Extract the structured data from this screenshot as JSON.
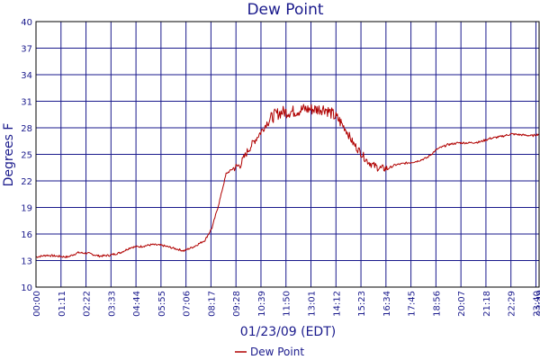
{
  "chart_data": {
    "type": "line",
    "title": "Dew Point",
    "xlabel": "01/23/09 (EDT)",
    "ylabel": "Degrees F",
    "ylim": [
      10,
      40
    ],
    "y_ticks": [
      10,
      13,
      16,
      19,
      22,
      25,
      28,
      31,
      34,
      37,
      40
    ],
    "y_tick_labels": [
      "10",
      "13",
      "16",
      "19",
      "22",
      "25",
      "28",
      "31",
      "34",
      "37",
      "40"
    ],
    "xlim": [
      "00:00",
      "23:49"
    ],
    "x_tick_labels": [
      "00:00",
      "01:11",
      "02:22",
      "03:33",
      "04:44",
      "05:55",
      "07:06",
      "08:17",
      "09:28",
      "10:39",
      "11:50",
      "13:01",
      "14:12",
      "15:23",
      "16:34",
      "17:45",
      "18:56",
      "20:07",
      "21:18",
      "22:29",
      "23:40",
      "23:49"
    ],
    "grid": true,
    "legend_position": "bottom",
    "series": [
      {
        "name": "Dew Point",
        "color": "#b00000",
        "x": [
          "00:00",
          "00:30",
          "01:00",
          "01:30",
          "02:00",
          "02:30",
          "03:00",
          "03:30",
          "04:00",
          "04:30",
          "05:00",
          "05:30",
          "06:00",
          "06:30",
          "07:00",
          "07:30",
          "08:00",
          "08:20",
          "08:40",
          "09:00",
          "09:20",
          "09:40",
          "10:00",
          "10:20",
          "10:40",
          "11:00",
          "11:20",
          "11:40",
          "12:00",
          "12:20",
          "12:40",
          "13:00",
          "13:20",
          "13:40",
          "14:00",
          "14:20",
          "14:40",
          "15:00",
          "15:20",
          "15:40",
          "16:00",
          "16:20",
          "16:40",
          "17:00",
          "17:30",
          "18:00",
          "18:30",
          "19:00",
          "19:30",
          "20:00",
          "20:30",
          "21:00",
          "21:30",
          "22:00",
          "22:30",
          "23:00",
          "23:30",
          "23:49"
        ],
        "y": [
          13.4,
          13.6,
          13.5,
          13.4,
          13.9,
          13.8,
          13.5,
          13.6,
          13.9,
          14.5,
          14.6,
          14.8,
          14.7,
          14.4,
          14.1,
          14.6,
          15.3,
          16.7,
          19.5,
          22.8,
          23.4,
          23.8,
          25.3,
          26.5,
          27.6,
          28.8,
          29.5,
          29.8,
          29.8,
          29.9,
          30.1,
          30.1,
          30.1,
          30.2,
          29.6,
          28.9,
          27.8,
          26.3,
          25.3,
          24.3,
          23.7,
          23.4,
          23.4,
          23.8,
          24.0,
          24.2,
          24.6,
          25.6,
          26.1,
          26.3,
          26.3,
          26.4,
          26.8,
          27.0,
          27.3,
          27.2,
          27.1,
          27.3
        ]
      }
    ]
  }
}
